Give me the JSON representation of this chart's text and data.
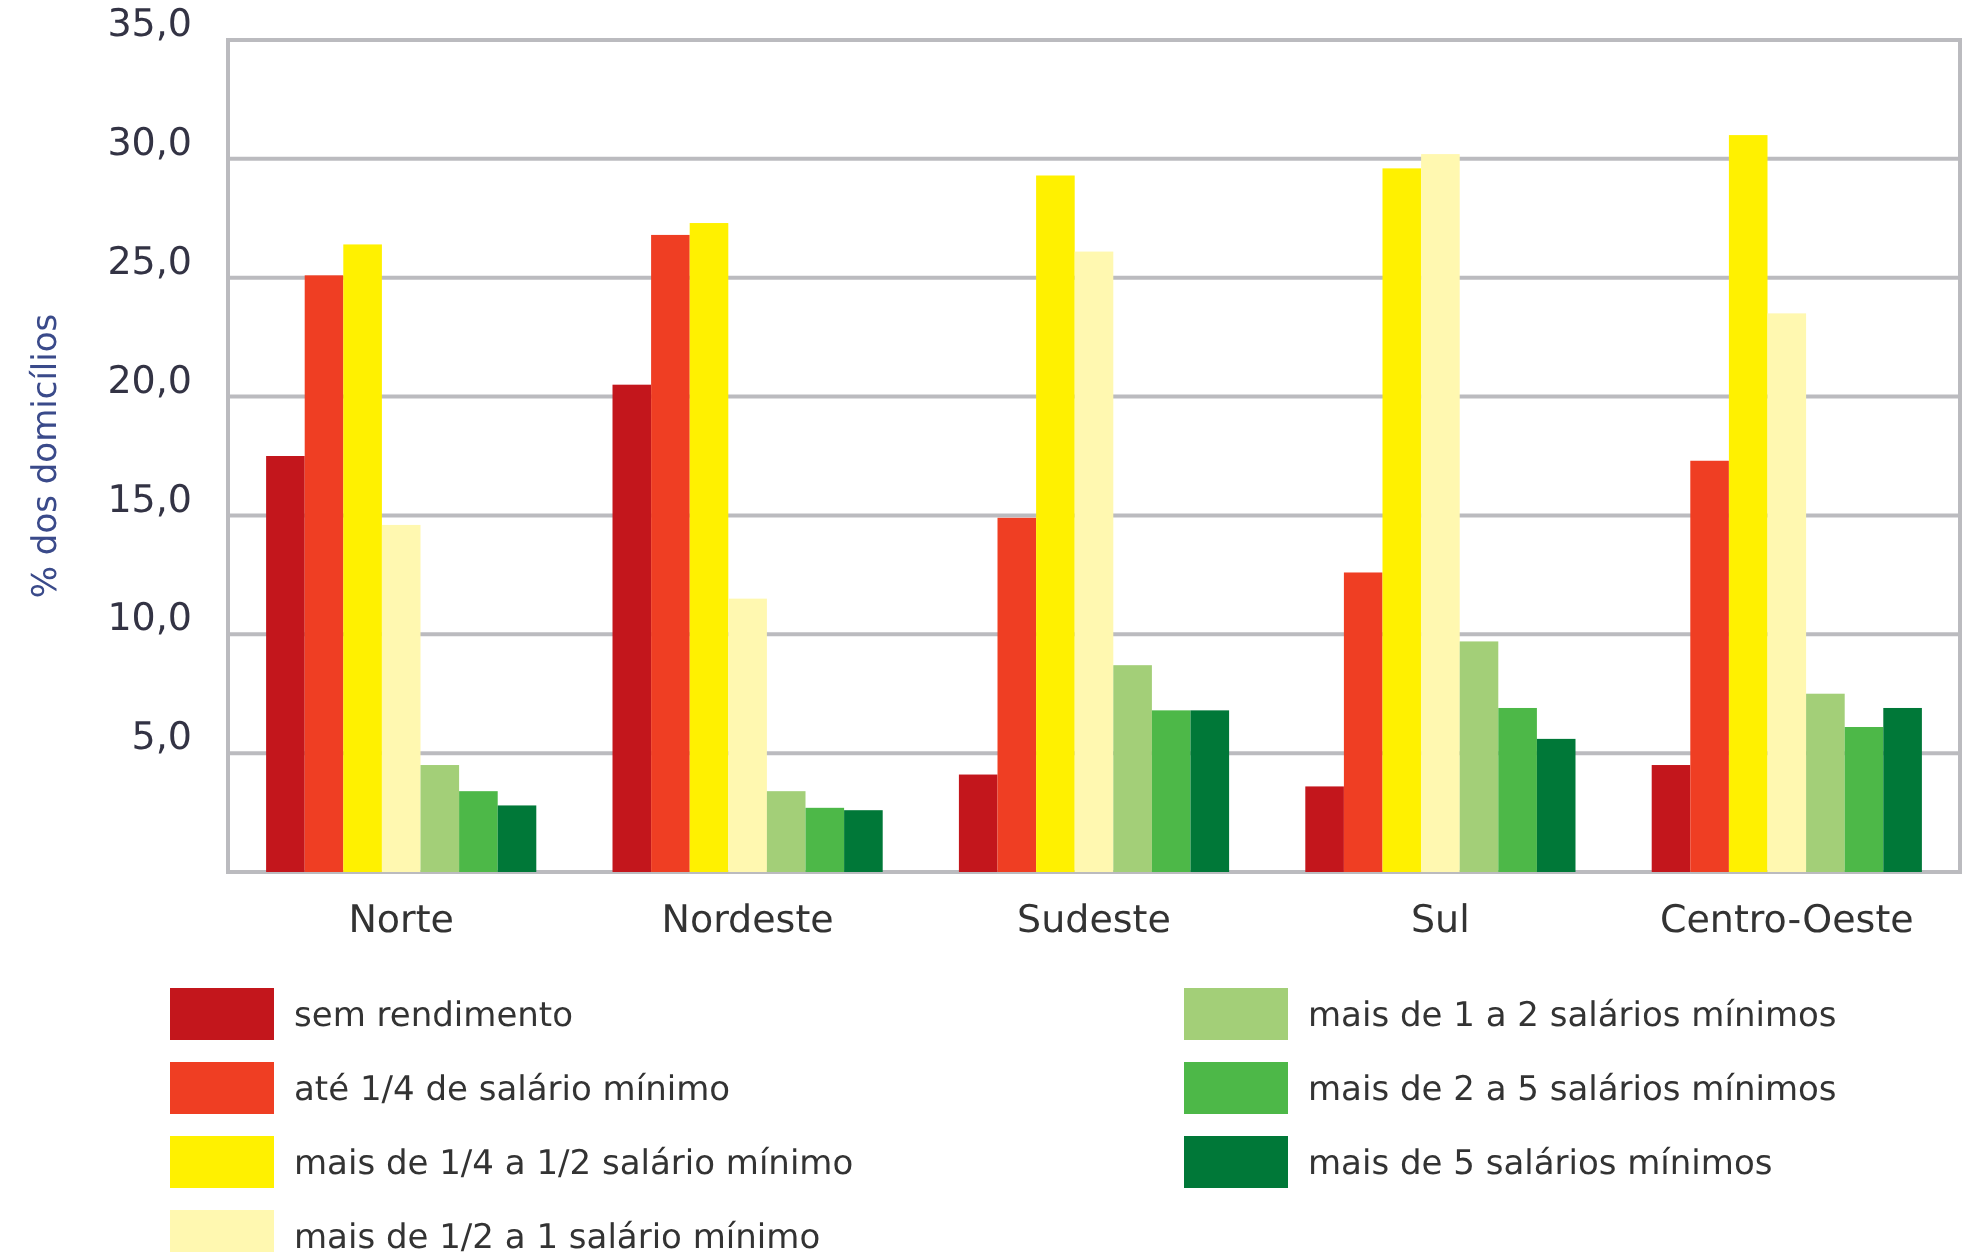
{
  "chart_data": {
    "type": "bar",
    "ylabel": "% dos domicílios",
    "categories": [
      "Norte",
      "Nordeste",
      "Sudeste",
      "Sul",
      "Centro-Oeste"
    ],
    "series": [
      {
        "name": "sem rendimento",
        "color": "#c3161c",
        "values": [
          17.5,
          20.5,
          4.1,
          3.6,
          4.5
        ]
      },
      {
        "name": "até 1/4 de salário mínimo",
        "color": "#ef3e23",
        "values": [
          25.1,
          26.8,
          14.9,
          12.6,
          17.3
        ]
      },
      {
        "name": "mais de 1/4 a 1/2 salário mínimo",
        "color": "#fff100",
        "values": [
          26.4,
          27.3,
          29.3,
          29.6,
          31.0
        ]
      },
      {
        "name": "mais de 1/2 a 1 salário mínimo",
        "color": "#fff8b0",
        "values": [
          14.6,
          11.5,
          26.1,
          30.2,
          23.5
        ]
      },
      {
        "name": "mais de 1 a 2 salários mínimos",
        "color": "#a3cf78",
        "values": [
          4.5,
          3.4,
          8.7,
          9.7,
          7.5
        ]
      },
      {
        "name": "mais de 2 a 5 salários mínimos",
        "color": "#4db848",
        "values": [
          3.4,
          2.7,
          6.8,
          6.9,
          6.1
        ]
      },
      {
        "name": "mais de 5 salários mínimos",
        "color": "#007838",
        "values": [
          2.8,
          2.6,
          6.8,
          5.6,
          6.9
        ]
      }
    ],
    "ylim": [
      0,
      35
    ],
    "yticks": [
      {
        "value": 0,
        "label": null
      },
      {
        "value": 5,
        "label": "5,0"
      },
      {
        "value": 10,
        "label": "10,0"
      },
      {
        "value": 15,
        "label": "15,0"
      },
      {
        "value": 20,
        "label": "20,0"
      },
      {
        "value": 25,
        "label": "25,0"
      },
      {
        "value": 30,
        "label": "30,0"
      },
      {
        "value": 35,
        "label": "35,0"
      }
    ],
    "grid": "y",
    "legend": "bottom"
  }
}
